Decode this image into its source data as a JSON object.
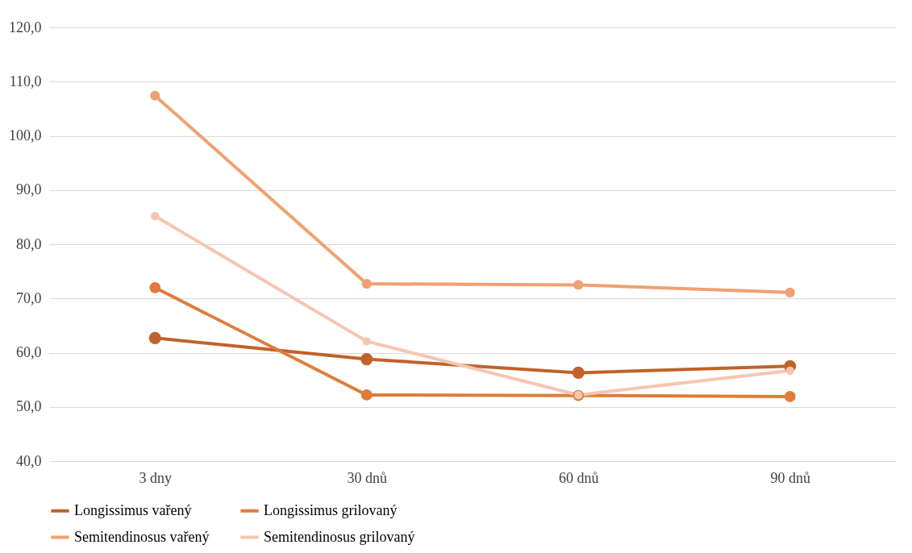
{
  "chart_data": {
    "type": "line",
    "categories": [
      "3 dny",
      "30 dnů",
      "60 dnů",
      "90 dnů"
    ],
    "series": [
      {
        "name": "Longissimus vařený",
        "color": "#c0622a",
        "values": [
          62.7,
          58.8,
          56.3,
          57.5
        ]
      },
      {
        "name": "Longissimus grilovaný",
        "color": "#e07b39",
        "values": [
          72.0,
          52.2,
          52.1,
          51.9
        ]
      },
      {
        "name": "Semitendinosus vařený",
        "color": "#f0a070",
        "values": [
          107.4,
          72.7,
          72.5,
          71.1
        ]
      },
      {
        "name": "Semitendinosus grilovaný",
        "color": "#f5c6b0",
        "values": [
          85.2,
          62.1,
          52.2,
          56.7
        ]
      }
    ],
    "ylim": [
      40,
      120
    ],
    "yticks": [
      {
        "value": 40,
        "label": "40,0"
      },
      {
        "value": 50,
        "label": "50,0"
      },
      {
        "value": 60,
        "label": "60,0"
      },
      {
        "value": 70,
        "label": "70,0"
      },
      {
        "value": 80,
        "label": "80,0"
      },
      {
        "value": 90,
        "label": "90,0"
      },
      {
        "value": 100,
        "label": "100,0"
      },
      {
        "value": 110,
        "label": "110,0"
      },
      {
        "value": 120,
        "label": "120,0"
      }
    ],
    "grid": "y",
    "legend": "bottom",
    "marker": "circle",
    "line_style": "solid"
  }
}
